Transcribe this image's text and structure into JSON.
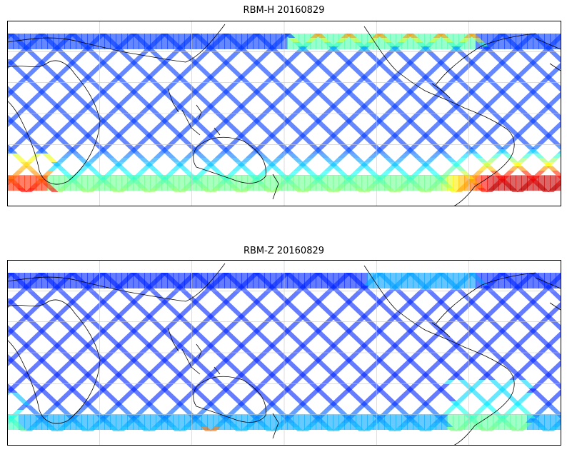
{
  "figure": {
    "panels": [
      {
        "title": "RBM-H 20160829"
      },
      {
        "title": "RBM-Z 20160829"
      }
    ]
  },
  "style": {
    "colormap": "jet",
    "track_alpha": 0.6,
    "gridline_color": "#c8c8c8",
    "coastline_color": "#000000"
  }
}
